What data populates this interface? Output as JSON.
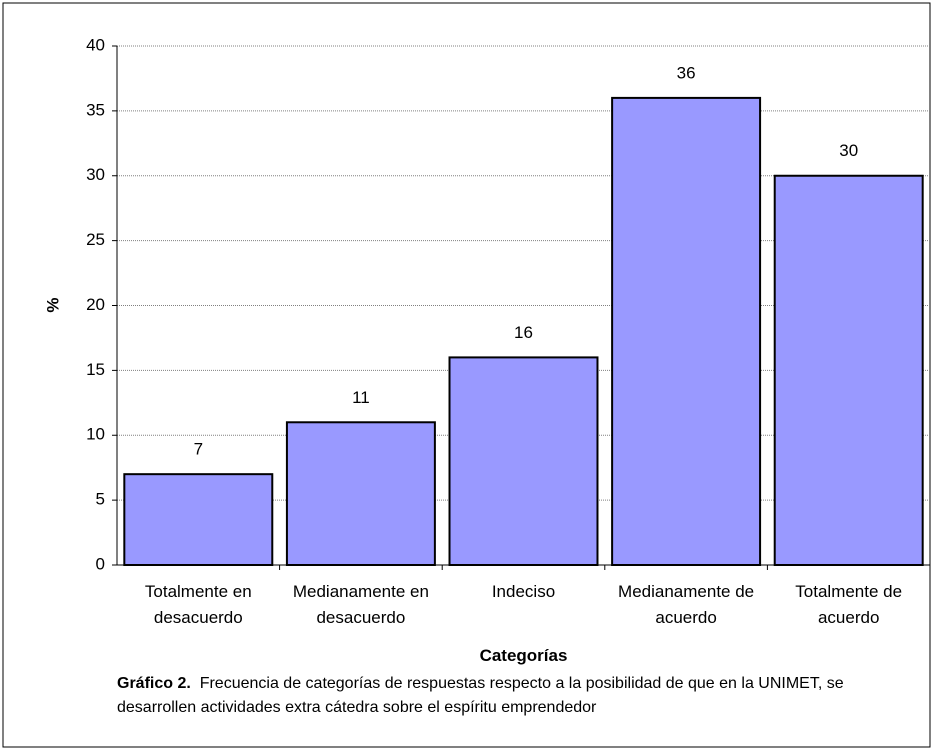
{
  "chart_data": {
    "type": "bar",
    "categories": [
      "Totalmente en desacuerdo",
      "Medianamente en desacuerdo",
      "Indeciso",
      "Medianamente de acuerdo",
      "Totalmente de acuerdo"
    ],
    "values": [
      7,
      11,
      16,
      36,
      30
    ],
    "color": "#9999ff",
    "ylim": [
      0,
      40
    ],
    "yticks": [
      0,
      5,
      10,
      15,
      20,
      25,
      30,
      35,
      40
    ],
    "grid": true,
    "x_label": "Categorías",
    "y_label": "%",
    "caption": {
      "label": "Gráfico 2.",
      "text": "Frecuencia de categorías de respuestas respecto a la posibilidad de que en la UNIMET, se desarrollen actividades extra cátedra sobre el espíritu emprendedor"
    }
  }
}
